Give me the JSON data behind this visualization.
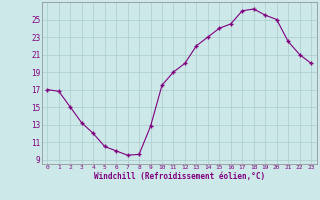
{
  "x": [
    0,
    1,
    2,
    3,
    4,
    5,
    6,
    7,
    8,
    9,
    10,
    11,
    12,
    13,
    14,
    15,
    16,
    17,
    18,
    19,
    20,
    21,
    22,
    23
  ],
  "y": [
    17,
    16.8,
    15,
    13.2,
    12,
    10.5,
    10,
    9.5,
    9.6,
    12.8,
    17.5,
    19,
    20,
    22,
    23,
    24,
    24.5,
    26,
    26.2,
    25.5,
    25,
    22.5,
    21,
    20
  ],
  "line_color": "#800080",
  "marker": "+",
  "bg_color": "#cce8e8",
  "grid_color": "#aacccc",
  "xlabel": "Windchill (Refroidissement éolien,°C)",
  "ylabel_ticks": [
    9,
    11,
    13,
    15,
    17,
    19,
    21,
    23,
    25
  ],
  "xtick_labels": [
    "0",
    "1",
    "2",
    "3",
    "4",
    "5",
    "6",
    "7",
    "8",
    "9",
    "10",
    "11",
    "12",
    "13",
    "14",
    "15",
    "16",
    "17",
    "18",
    "19",
    "20",
    "21",
    "22",
    "23"
  ],
  "xlim": [
    -0.5,
    23.5
  ],
  "ylim": [
    8.5,
    27
  ]
}
